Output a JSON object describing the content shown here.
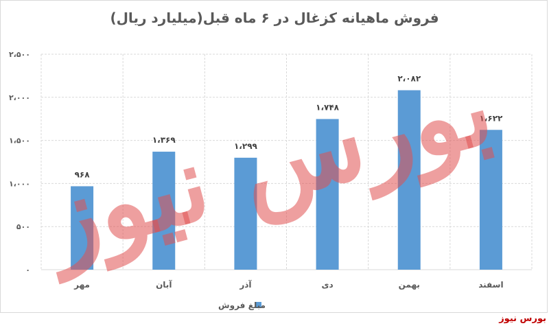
{
  "chart_data": {
    "type": "bar",
    "title": "فروش ماهیانه کزغال در ۶ ماه قبل(میلیارد ریال)",
    "categories": [
      "مهر",
      "آبان",
      "آذر",
      "دی",
      "بهمن",
      "اسفند"
    ],
    "series": [
      {
        "name": "مبلغ فروش",
        "values": [
          968,
          1369,
          1299,
          1748,
          2082,
          1622
        ],
        "labels": [
          "۹۶۸",
          "۱،۳۶۹",
          "۱،۲۹۹",
          "۱،۷۴۸",
          "۲،۰۸۲",
          "۱،۶۲۲"
        ]
      }
    ],
    "ylim": [
      0,
      2500
    ],
    "y_ticks": [
      0,
      500,
      1000,
      1500,
      2000,
      2500
    ],
    "y_tick_labels": [
      "۰",
      "۵۰۰",
      "۱،۰۰۰",
      "۱،۵۰۰",
      "۲،۰۰۰",
      "۲،۵۰۰"
    ],
    "grid": true,
    "legend_position": "bottom",
    "bar_color": "#5b9bd5"
  },
  "watermark_text": "بورس نیوز",
  "brand_label": "بورس نیوز"
}
